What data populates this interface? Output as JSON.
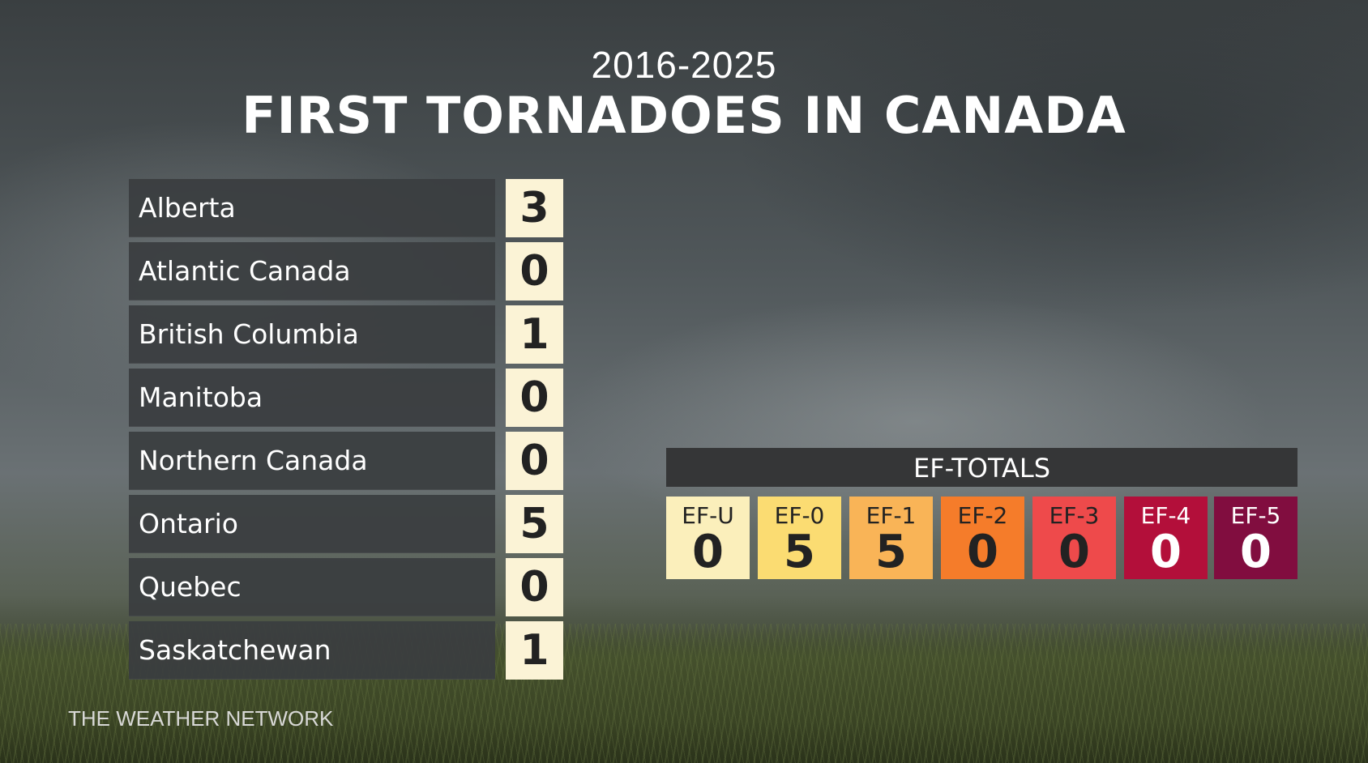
{
  "header": {
    "years": "2016-2025",
    "title": "FIRST TORNADOES IN CANADA"
  },
  "regions": [
    {
      "name": "Alberta",
      "count": "3"
    },
    {
      "name": "Atlantic Canada",
      "count": "0"
    },
    {
      "name": "British Columbia",
      "count": "1"
    },
    {
      "name": "Manitoba",
      "count": "0"
    },
    {
      "name": "Northern Canada",
      "count": "0"
    },
    {
      "name": "Ontario",
      "count": "5"
    },
    {
      "name": "Quebec",
      "count": "0"
    },
    {
      "name": "Saskatchewan",
      "count": "1"
    }
  ],
  "ef_totals": {
    "title": "EF-TOTALS",
    "items": [
      {
        "label": "EF-U",
        "value": "0",
        "color": "#fbefbb",
        "text_color": "#222222"
      },
      {
        "label": "EF-0",
        "value": "5",
        "color": "#fbdc72",
        "text_color": "#222222"
      },
      {
        "label": "EF-1",
        "value": "5",
        "color": "#f9b457",
        "text_color": "#222222"
      },
      {
        "label": "EF-2",
        "value": "0",
        "color": "#f57c2a",
        "text_color": "#222222"
      },
      {
        "label": "EF-3",
        "value": "0",
        "color": "#ee4a4b",
        "text_color": "#222222"
      },
      {
        "label": "EF-4",
        "value": "0",
        "color": "#b30f3a",
        "text_color": "#ffffff"
      },
      {
        "label": "EF-5",
        "value": "0",
        "color": "#810d3f",
        "text_color": "#ffffff"
      }
    ]
  },
  "branding": {
    "text": "THE WEATHER NETWORK"
  }
}
